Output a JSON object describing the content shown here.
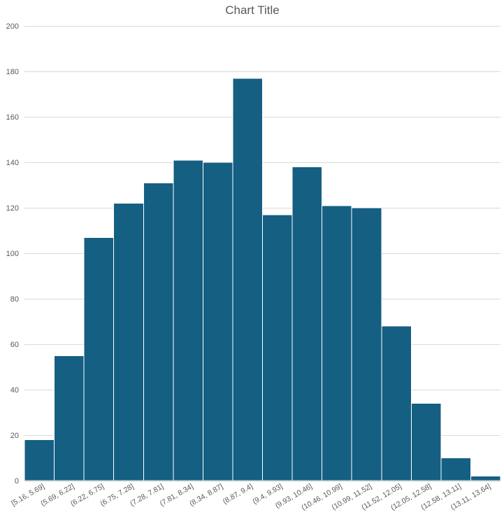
{
  "chart_data": {
    "type": "bar",
    "title": "Chart Title",
    "xlabel": "",
    "ylabel": "",
    "categories": [
      "[5.16, 5.69]",
      "(5.69, 6.22]",
      "(6.22, 6.75]",
      "(6.75, 7.28]",
      "(7.28, 7.81]",
      "(7.81, 8.34]",
      "(8.34, 8.87]",
      "(8.87, 9.4]",
      "(9.4, 9.93]",
      "(9.93, 10.46]",
      "(10.46, 10.99]",
      "(10.99, 11.52]",
      "(11.52, 12.05]",
      "(12.05, 12.58]",
      "(12.58, 13.11]",
      "(13.11, 13.64]"
    ],
    "values": [
      18,
      55,
      107,
      122,
      131,
      141,
      140,
      177,
      117,
      138,
      121,
      120,
      68,
      34,
      10,
      2
    ],
    "ylim": [
      0,
      200
    ],
    "yticks": [
      0,
      20,
      40,
      60,
      80,
      100,
      120,
      140,
      160,
      180,
      200
    ],
    "grid": true,
    "legend": "none",
    "bar_color": "#155f82"
  }
}
